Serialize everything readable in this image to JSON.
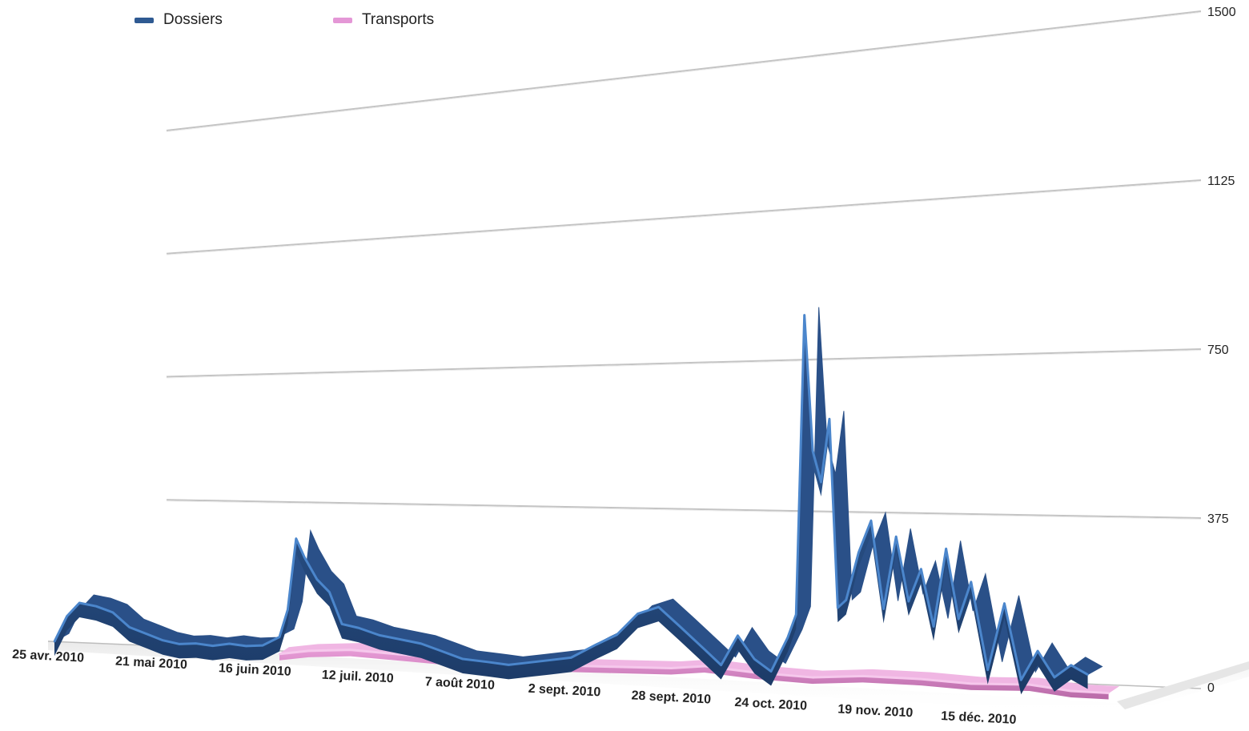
{
  "chart_data": {
    "type": "area",
    "style": "3d-ribbon",
    "legend_position": "top-left",
    "grid": true,
    "ylim": [
      0,
      1500
    ],
    "yticks": [
      "0",
      "375",
      "750",
      "1125",
      "1500"
    ],
    "xticks": [
      "25 avr. 2010",
      "21 mai 2010",
      "16 juin 2010",
      "12 juil. 2010",
      "7 août 2010",
      "2 sept. 2010",
      "28 sept. 2010",
      "24 oct. 2010",
      "19 nov. 2010",
      "15 déc. 2010"
    ],
    "x_start": "2010-04-25",
    "x_end": "2011-01-05",
    "series": [
      {
        "name": "Dossiers",
        "color": "#2f5a92",
        "points": [
          [
            "2010-04-25",
            5
          ],
          [
            "2010-04-28",
            100
          ],
          [
            "2010-05-01",
            150
          ],
          [
            "2010-05-05",
            140
          ],
          [
            "2010-05-09",
            120
          ],
          [
            "2010-05-13",
            70
          ],
          [
            "2010-05-17",
            50
          ],
          [
            "2010-05-21",
            30
          ],
          [
            "2010-05-25",
            20
          ],
          [
            "2010-05-29",
            25
          ],
          [
            "2010-06-02",
            20
          ],
          [
            "2010-06-06",
            30
          ],
          [
            "2010-06-10",
            25
          ],
          [
            "2010-06-14",
            30
          ],
          [
            "2010-06-18",
            60
          ],
          [
            "2010-06-20",
            150
          ],
          [
            "2010-06-22",
            380
          ],
          [
            "2010-06-24",
            320
          ],
          [
            "2010-06-27",
            250
          ],
          [
            "2010-06-30",
            210
          ],
          [
            "2010-07-03",
            110
          ],
          [
            "2010-07-07",
            100
          ],
          [
            "2010-07-12",
            80
          ],
          [
            "2010-07-17",
            70
          ],
          [
            "2010-07-22",
            60
          ],
          [
            "2010-07-27",
            40
          ],
          [
            "2010-08-01",
            20
          ],
          [
            "2010-08-07",
            15
          ],
          [
            "2010-08-12",
            10
          ],
          [
            "2010-08-17",
            20
          ],
          [
            "2010-08-22",
            30
          ],
          [
            "2010-08-27",
            40
          ],
          [
            "2010-09-02",
            80
          ],
          [
            "2010-09-07",
            110
          ],
          [
            "2010-09-12",
            170
          ],
          [
            "2010-09-17",
            190
          ],
          [
            "2010-09-22",
            140
          ],
          [
            "2010-09-28",
            80
          ],
          [
            "2010-10-02",
            40
          ],
          [
            "2010-10-06",
            120
          ],
          [
            "2010-10-10",
            60
          ],
          [
            "2010-10-14",
            30
          ],
          [
            "2010-10-18",
            120
          ],
          [
            "2010-10-20",
            180
          ],
          [
            "2010-10-22",
            950
          ],
          [
            "2010-10-24",
            600
          ],
          [
            "2010-10-26",
            520
          ],
          [
            "2010-10-28",
            680
          ],
          [
            "2010-10-30",
            200
          ],
          [
            "2010-11-01",
            220
          ],
          [
            "2010-11-04",
            340
          ],
          [
            "2010-11-07",
            420
          ],
          [
            "2010-11-10",
            200
          ],
          [
            "2010-11-13",
            380
          ],
          [
            "2010-11-16",
            220
          ],
          [
            "2010-11-19",
            300
          ],
          [
            "2010-11-22",
            160
          ],
          [
            "2010-11-25",
            350
          ],
          [
            "2010-11-28",
            180
          ],
          [
            "2010-12-01",
            270
          ],
          [
            "2010-12-05",
            60
          ],
          [
            "2010-12-09",
            220
          ],
          [
            "2010-12-13",
            40
          ],
          [
            "2010-12-17",
            110
          ],
          [
            "2010-12-21",
            50
          ],
          [
            "2010-12-25",
            80
          ],
          [
            "2010-12-29",
            60
          ]
        ]
      },
      {
        "name": "Transports",
        "color": "#e497d6",
        "points": [
          [
            "2010-06-18",
            5
          ],
          [
            "2010-06-25",
            20
          ],
          [
            "2010-07-05",
            30
          ],
          [
            "2010-07-15",
            25
          ],
          [
            "2010-07-25",
            20
          ],
          [
            "2010-08-05",
            15
          ],
          [
            "2010-08-20",
            15
          ],
          [
            "2010-09-05",
            20
          ],
          [
            "2010-09-20",
            25
          ],
          [
            "2010-09-28",
            35
          ],
          [
            "2010-10-10",
            25
          ],
          [
            "2010-10-24",
            20
          ],
          [
            "2010-11-05",
            30
          ],
          [
            "2010-11-19",
            30
          ],
          [
            "2010-12-01",
            25
          ],
          [
            "2010-12-15",
            30
          ],
          [
            "2010-12-25",
            20
          ],
          [
            "2011-01-03",
            20
          ]
        ]
      }
    ]
  }
}
